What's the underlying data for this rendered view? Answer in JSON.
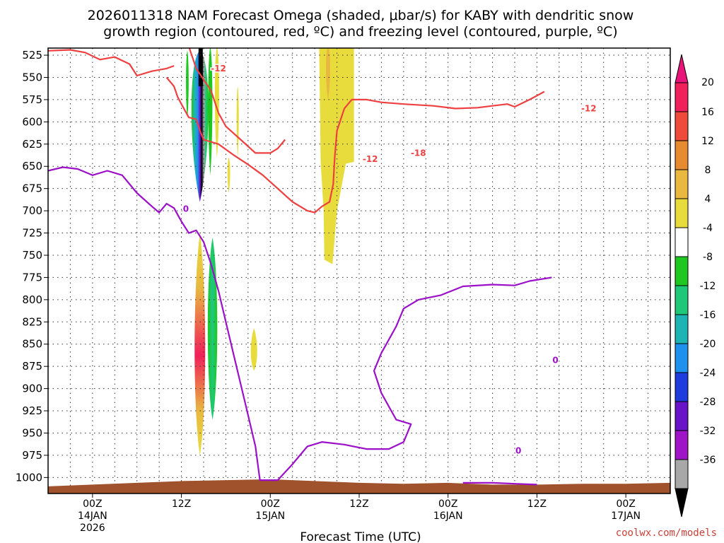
{
  "chart_data": {
    "type": "time-height contour",
    "title_line1": "2026011318 NAM Forecast Omega (shaded, μbar/s) for KABY with dendritic snow",
    "title_line2": "growth region (contoured, red, ºC) and freezing level (contoured, purple, ºC)",
    "xlabel": "Forecast Time (UTC)",
    "credit": "coolwx.com/models",
    "pressure_levels": [
      525,
      550,
      575,
      600,
      625,
      650,
      675,
      700,
      725,
      750,
      775,
      800,
      825,
      850,
      875,
      900,
      925,
      950,
      975,
      1000
    ],
    "ylim": [
      1018,
      517
    ],
    "x_range_hours": [
      0,
      84
    ],
    "x_ticks": [
      {
        "hour": 6,
        "line1": "00Z",
        "line2": "14JAN",
        "line3": "2026"
      },
      {
        "hour": 18,
        "line1": "12Z",
        "line2": "",
        "line3": ""
      },
      {
        "hour": 30,
        "line1": "00Z",
        "line2": "15JAN",
        "line3": ""
      },
      {
        "hour": 42,
        "line1": "12Z",
        "line2": "",
        "line3": ""
      },
      {
        "hour": 54,
        "line1": "00Z",
        "line2": "16JAN",
        "line3": ""
      },
      {
        "hour": 66,
        "line1": "12Z",
        "line2": "",
        "line3": ""
      },
      {
        "hour": 78,
        "line1": "00Z",
        "line2": "17JAN",
        "line3": ""
      }
    ],
    "colorbar": {
      "ticks": [
        "20",
        "16",
        "12",
        "8",
        "4",
        "-4",
        "-8",
        "-12",
        "-16",
        "-20",
        "-24",
        "-28",
        "-32",
        "-36"
      ],
      "colors": [
        "#f0205a",
        "#ee4b3a",
        "#e88a30",
        "#e8b840",
        "#e8dc3c",
        "#ffffff",
        "#1ec81e",
        "#1ec878",
        "#1eb4b4",
        "#1e90ee",
        "#1e3cdc",
        "#6a14c8",
        "#a014c8",
        "#a8a8a8"
      ],
      "top_arrow_color": "#e8147a",
      "bottom_arrow_color": "#000000"
    },
    "contour_labels": [
      {
        "text": "-12",
        "series": "dgz"
      },
      {
        "text": "-12",
        "series": "dgz"
      },
      {
        "text": "-18",
        "series": "dgz"
      },
      {
        "text": "-12",
        "series": "dgz"
      },
      {
        "text": "0",
        "series": "freezing"
      },
      {
        "text": "0",
        "series": "freezing"
      },
      {
        "text": "0",
        "series": "freezing"
      }
    ],
    "series": [
      {
        "name": "freezing level 0C",
        "color": "#9b10c8",
        "points": [
          [
            0,
            655
          ],
          [
            2,
            651
          ],
          [
            4,
            653
          ],
          [
            6,
            660
          ],
          [
            8,
            655
          ],
          [
            10,
            660
          ],
          [
            12,
            680
          ],
          [
            14,
            695
          ],
          [
            15,
            702
          ],
          [
            16,
            692
          ],
          [
            17,
            697
          ],
          [
            18,
            712
          ],
          [
            19,
            725
          ],
          [
            20,
            722
          ],
          [
            21,
            735
          ],
          [
            22,
            760
          ],
          [
            23,
            790
          ],
          [
            24,
            825
          ],
          [
            25,
            860
          ],
          [
            26,
            895
          ],
          [
            27,
            930
          ],
          [
            28,
            965
          ],
          [
            28.6,
            1003
          ],
          [
            31,
            1003
          ],
          [
            33,
            985
          ],
          [
            35,
            965
          ],
          [
            37,
            960
          ],
          [
            40,
            963
          ],
          [
            43,
            968
          ],
          [
            46,
            968
          ],
          [
            48,
            960
          ],
          [
            49,
            940
          ],
          [
            47,
            935
          ],
          [
            46,
            920
          ],
          [
            45,
            905
          ],
          [
            44,
            880
          ],
          [
            45,
            860
          ],
          [
            47,
            830
          ],
          [
            48,
            810
          ],
          [
            50,
            800
          ],
          [
            53,
            795
          ],
          [
            56,
            785
          ],
          [
            60,
            783
          ],
          [
            63,
            784
          ],
          [
            65,
            779
          ],
          [
            68,
            775
          ]
        ]
      },
      {
        "name": "freezing level 0C (surface)",
        "color": "#9b10c8",
        "points": [
          [
            56,
            1006
          ],
          [
            60,
            1006
          ],
          [
            63,
            1007
          ],
          [
            66,
            1008
          ]
        ]
      },
      {
        "name": "DGZ -12C upper",
        "color": "#ee4040",
        "points": [
          [
            0,
            520
          ],
          [
            3,
            519
          ],
          [
            5,
            522
          ],
          [
            7,
            530
          ],
          [
            9,
            527
          ],
          [
            11,
            535
          ],
          [
            12,
            548
          ],
          [
            14,
            543
          ],
          [
            16,
            540
          ],
          [
            17,
            537
          ]
        ]
      },
      {
        "name": "DGZ -12C main",
        "color": "#ee4040",
        "points": [
          [
            16,
            550
          ],
          [
            17,
            560
          ],
          [
            17.5,
            572
          ],
          [
            18,
            580
          ],
          [
            19,
            595
          ],
          [
            20,
            597
          ],
          [
            20.5,
            610
          ],
          [
            21,
            620
          ],
          [
            23,
            625
          ],
          [
            25,
            637
          ],
          [
            27,
            648
          ],
          [
            29,
            660
          ],
          [
            31,
            675
          ],
          [
            33,
            690
          ],
          [
            35,
            700
          ],
          [
            36,
            702
          ],
          [
            37,
            695
          ],
          [
            38,
            690
          ],
          [
            38.5,
            670
          ],
          [
            38.7,
            640
          ],
          [
            39,
            610
          ],
          [
            40,
            585
          ],
          [
            41,
            575
          ],
          [
            43,
            575
          ],
          [
            45,
            578
          ],
          [
            48,
            580
          ],
          [
            52,
            582
          ],
          [
            55,
            585
          ],
          [
            58,
            584
          ],
          [
            60,
            582
          ],
          [
            62,
            580
          ],
          [
            63,
            583
          ],
          [
            65,
            575
          ],
          [
            67,
            566
          ]
        ]
      },
      {
        "name": "DGZ -18C",
        "color": "#ee4040",
        "points": [
          [
            19,
            515
          ],
          [
            20,
            540
          ],
          [
            22,
            565
          ],
          [
            23,
            590
          ],
          [
            24,
            605
          ],
          [
            26,
            620
          ],
          [
            28,
            635
          ],
          [
            30,
            635
          ],
          [
            31,
            630
          ],
          [
            32,
            620
          ]
        ]
      }
    ],
    "omega_features": [
      {
        "name": "upper negative core",
        "min_value": "-36",
        "levels": [
          575,
          690
        ]
      },
      {
        "name": "lower negative core",
        "min_value": "-8",
        "levels": [
          730,
          935
        ]
      },
      {
        "name": "lower positive core",
        "max_value": "20",
        "levels": [
          730,
          975
        ]
      },
      {
        "name": "upper positive band",
        "max_value": "8",
        "levels": [
          515,
          760
        ]
      }
    ]
  }
}
